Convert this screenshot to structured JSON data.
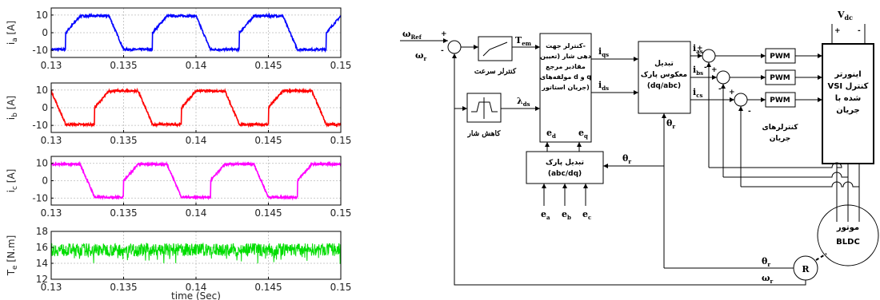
{
  "chart_data": [
    {
      "type": "line",
      "ylabel": "i_a [A]",
      "xlim": [
        0.13,
        0.15
      ],
      "ylim": [
        -14,
        14
      ],
      "yticks": [
        -10,
        0,
        10
      ],
      "xticks": [
        "0.13",
        "0.135",
        "0.14",
        "0.145",
        "0.15"
      ],
      "series": [
        {
          "color": "#0000ff",
          "waveform": "trapezoidal",
          "amplitude": 9.5,
          "period": 0.006,
          "phase_deg": 60,
          "noise": 0.6
        }
      ]
    },
    {
      "type": "line",
      "ylabel": "i_b [A]",
      "xlim": [
        0.13,
        0.15
      ],
      "ylim": [
        -14,
        14
      ],
      "yticks": [
        -10,
        0,
        10
      ],
      "xticks": [
        "0.13",
        "0.135",
        "0.14",
        "0.145",
        "0.15"
      ],
      "series": [
        {
          "color": "#ff0000",
          "waveform": "trapezoidal",
          "amplitude": 9.5,
          "period": 0.006,
          "phase_deg": -60,
          "noise": 0.6
        }
      ]
    },
    {
      "type": "line",
      "ylabel": "i_c [A]",
      "xlim": [
        0.13,
        0.15
      ],
      "ylim": [
        -14,
        14
      ],
      "yticks": [
        -10,
        0,
        10
      ],
      "xticks": [
        "0.13",
        "0.135",
        "0.14",
        "0.145",
        "0.15"
      ],
      "series": [
        {
          "color": "#ff00ff",
          "waveform": "trapezoidal",
          "amplitude": 9.5,
          "period": 0.006,
          "phase_deg": 180,
          "noise": 0.6
        }
      ]
    },
    {
      "type": "line",
      "ylabel": "T_e [N.m]",
      "xlabel": "time (Sec)",
      "xlim": [
        0.13,
        0.15
      ],
      "ylim": [
        12,
        18
      ],
      "yticks": [
        12,
        14,
        16,
        18
      ],
      "xticks": [
        "0.13",
        "0.135",
        "0.14",
        "0.145",
        "0.15"
      ],
      "series": [
        {
          "color": "#00dd00",
          "waveform": "ripple",
          "mean": 15.7,
          "ripple": 0.8
        }
      ]
    }
  ],
  "diagram": {
    "omega_ref": "ω",
    "omega_ref_sub": "Ref",
    "omega_r": "ω",
    "omega_r_sub": "r",
    "speed_ctrl": "کنترلر سرعت",
    "flux_weak": "کاهش شار",
    "t_em": "T",
    "t_em_sub": "em",
    "lambda_ds": "λ",
    "lambda_ds_sub": "ds",
    "current_ctrl_title": [
      "کنترلر جهت-",
      "دهی شار (تعیین",
      "مقادیر مرجع",
      "مولفه‌های d و q",
      "جریان استاتور)"
    ],
    "iqs": "i",
    "iqs_sub": "qs",
    "ids": "i",
    "ids_sub": "ds",
    "inv_park": [
      "تبدیل",
      "معکوس پارک",
      "(dq/abc)"
    ],
    "park": [
      "تبدیل پارک",
      "(abc/dq)"
    ],
    "ed": "e",
    "ed_sub": "d",
    "eq": "e",
    "eq_sub": "q",
    "ias": "i",
    "ias_sub": "as",
    "ibs": "i",
    "ibs_sub": "bs",
    "ics": "i",
    "ics_sub": "cs",
    "pwm": "PWM",
    "current_controllers": [
      "کنترلرهای",
      "جریان"
    ],
    "inverter": [
      "اینورتر",
      "VSI کنترل",
      "شده با",
      "جریان"
    ],
    "vdc": "V",
    "vdc_sub": "dc",
    "theta": "θ",
    "theta_sub": "r",
    "ea": "e",
    "ea_sub": "a",
    "eb": "e",
    "eb_sub": "b",
    "ec": "e",
    "ec_sub": "c",
    "motor": [
      "موتور",
      "BLDC"
    ],
    "resolver": "R",
    "plus": "+",
    "minus": "-"
  }
}
